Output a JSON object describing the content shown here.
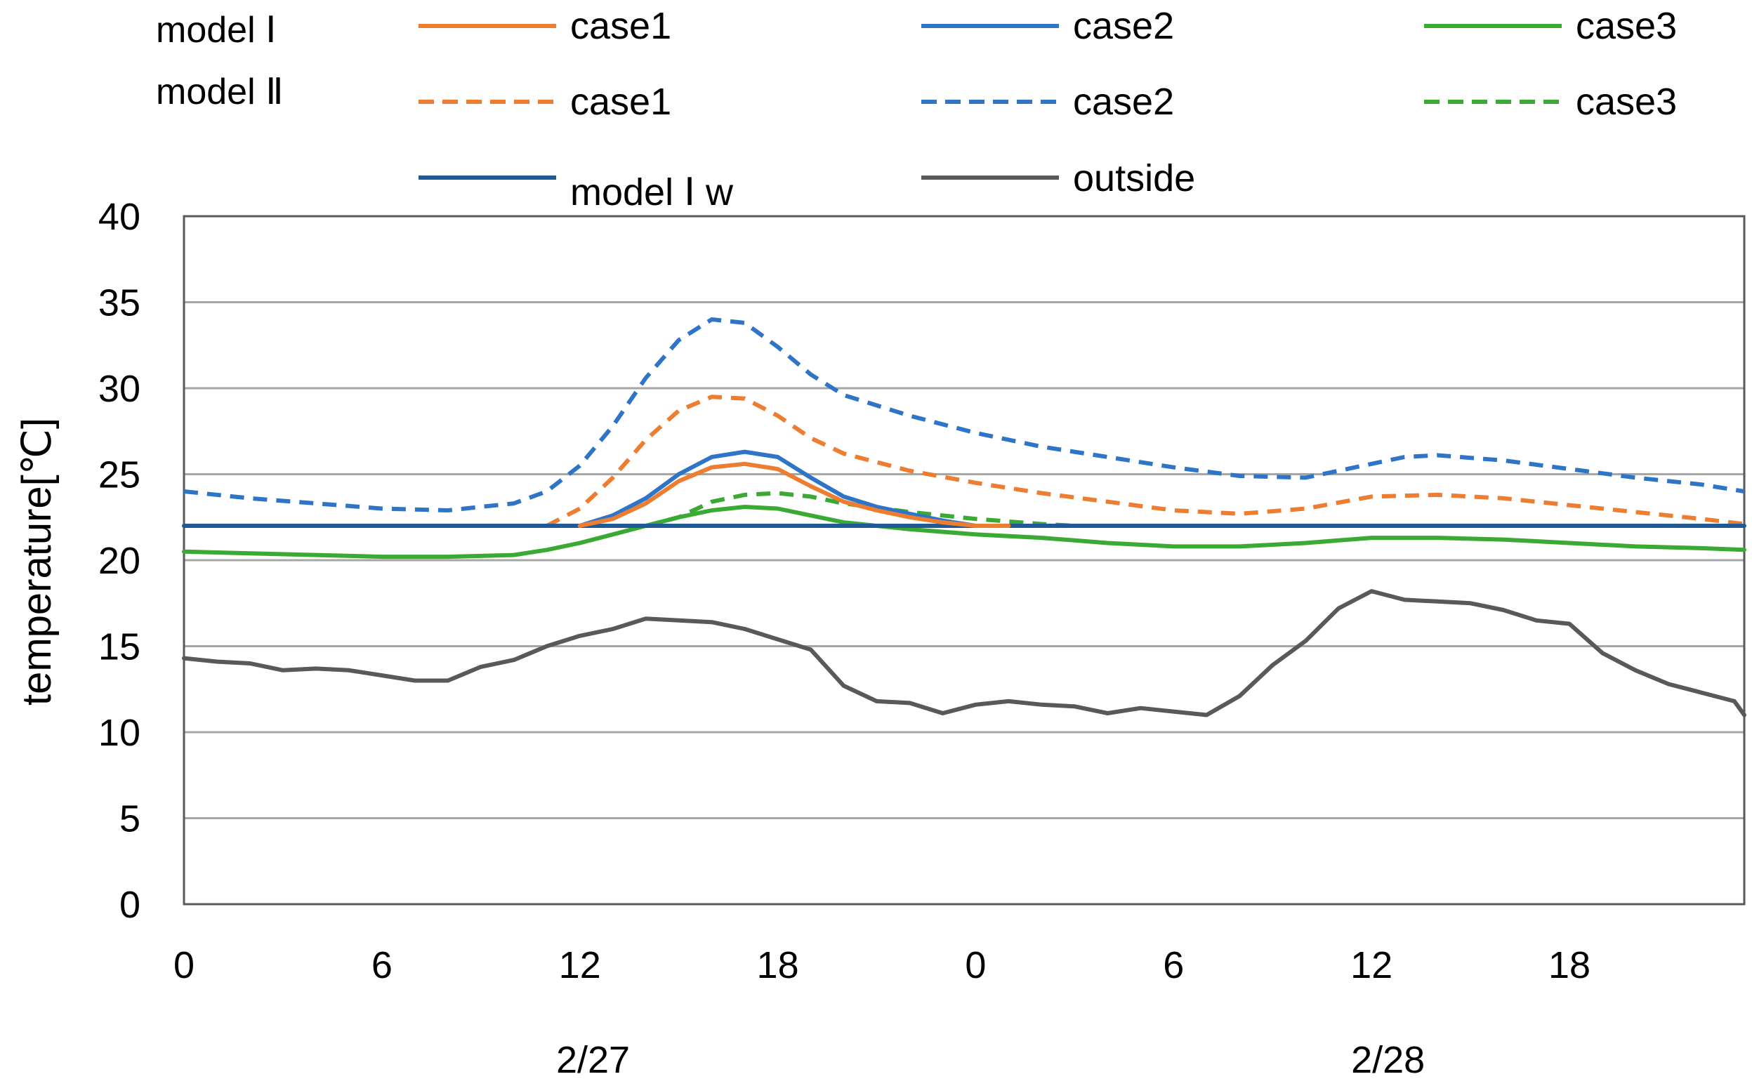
{
  "chart_data": {
    "type": "line",
    "title": "",
    "ylabel": "temperature[℃]",
    "xlabel": "",
    "ylim": [
      0,
      40
    ],
    "yticks": [
      "0",
      "5",
      "10",
      "15",
      "20",
      "25",
      "30",
      "35",
      "40"
    ],
    "xlim": [
      0,
      47.3
    ],
    "xtick_labels": [
      "0",
      "6",
      "12",
      "18",
      "0",
      "6",
      "12",
      "18"
    ],
    "date_labels": [
      "2/27",
      "2/28"
    ],
    "grid": true,
    "legend": {
      "position": "top",
      "row_labels": [
        "model Ⅰ",
        "model Ⅱ"
      ],
      "entries": [
        "case1",
        "case2",
        "case3",
        "case1",
        "case2",
        "case3",
        "model Ⅰ w",
        "outside"
      ]
    },
    "colors": {
      "case1": "#ED7D31",
      "case2": "#2E75C8",
      "case3": "#3AAA35",
      "model_w": "#1F5A96",
      "outside": "#595959",
      "grid": "#A6A6A6"
    },
    "series": [
      {
        "name": "model Ⅰ case1",
        "style": "solid",
        "color": "#ED7D31",
        "x": [
          12,
          13,
          14,
          15,
          16,
          17,
          18,
          19,
          20,
          21,
          22,
          23,
          24,
          25
        ],
        "y": [
          22.0,
          22.4,
          23.3,
          24.6,
          25.4,
          25.6,
          25.3,
          24.3,
          23.4,
          22.9,
          22.5,
          22.2,
          22.0,
          22.0
        ]
      },
      {
        "name": "model Ⅰ case2",
        "style": "solid",
        "color": "#2E75C8",
        "x": [
          12,
          13,
          14,
          15,
          16,
          17,
          18,
          19,
          20,
          21,
          22,
          23,
          24,
          25
        ],
        "y": [
          22.0,
          22.6,
          23.6,
          25.0,
          26.0,
          26.3,
          26.0,
          24.8,
          23.7,
          23.1,
          22.7,
          22.3,
          22.0,
          22.0
        ]
      },
      {
        "name": "model Ⅰ case3",
        "style": "solid",
        "color": "#3AAA35",
        "x": [
          0,
          2,
          4,
          6,
          8,
          10,
          11,
          12,
          13,
          14,
          15,
          16,
          17,
          18,
          19,
          20,
          22,
          24,
          26,
          28,
          30,
          32,
          34,
          36,
          37,
          38,
          40,
          42,
          44,
          46,
          47.3
        ],
        "y": [
          20.5,
          20.4,
          20.3,
          20.2,
          20.2,
          20.3,
          20.6,
          21.0,
          21.5,
          22.0,
          22.5,
          22.9,
          23.1,
          23.0,
          22.6,
          22.2,
          21.8,
          21.5,
          21.3,
          21.0,
          20.8,
          20.8,
          21.0,
          21.3,
          21.3,
          21.3,
          21.2,
          21.0,
          20.8,
          20.7,
          20.6
        ]
      },
      {
        "name": "model Ⅱ case1",
        "style": "dashed",
        "color": "#ED7D31",
        "x": [
          11,
          12,
          13,
          14,
          15,
          16,
          17,
          18,
          19,
          20,
          22,
          24,
          26,
          28,
          30,
          32,
          34,
          36,
          38,
          40,
          42,
          44,
          46,
          47.3
        ],
        "y": [
          22.0,
          23.0,
          24.8,
          27.0,
          28.7,
          29.5,
          29.4,
          28.4,
          27.1,
          26.2,
          25.2,
          24.5,
          23.9,
          23.4,
          22.9,
          22.7,
          23.0,
          23.7,
          23.8,
          23.6,
          23.2,
          22.8,
          22.4,
          22.1
        ]
      },
      {
        "name": "model Ⅱ case2",
        "style": "dashed",
        "color": "#2E75C8",
        "x": [
          0,
          2,
          4,
          6,
          8,
          10,
          11,
          12,
          13,
          14,
          15,
          16,
          17,
          18,
          19,
          20,
          22,
          24,
          26,
          28,
          30,
          32,
          34,
          36,
          37,
          38,
          40,
          42,
          44,
          46,
          47.3
        ],
        "y": [
          24.0,
          23.6,
          23.3,
          23.0,
          22.9,
          23.3,
          24.0,
          25.5,
          27.8,
          30.6,
          32.8,
          34.0,
          33.8,
          32.4,
          30.8,
          29.6,
          28.4,
          27.4,
          26.6,
          26.0,
          25.4,
          24.9,
          24.8,
          25.6,
          26.0,
          26.1,
          25.8,
          25.3,
          24.8,
          24.4,
          24.0
        ]
      },
      {
        "name": "model Ⅱ case3",
        "style": "dashed",
        "color": "#3AAA35",
        "x": [
          14,
          15,
          16,
          17,
          18,
          19,
          20,
          22,
          24,
          26,
          27
        ],
        "y": [
          22.0,
          22.5,
          23.4,
          23.8,
          23.9,
          23.7,
          23.3,
          22.8,
          22.4,
          22.1,
          22.0
        ]
      },
      {
        "name": "model Ⅰ w",
        "style": "solid",
        "color": "#1F5A96",
        "x": [
          0,
          47.3
        ],
        "y": [
          22.0,
          22.0
        ]
      },
      {
        "name": "outside",
        "style": "solid",
        "color": "#595959",
        "x": [
          0,
          1,
          2,
          3,
          4,
          5,
          6,
          7,
          8,
          9,
          10,
          11,
          12,
          13,
          14,
          15,
          16,
          17,
          18,
          19,
          20,
          21,
          22,
          23,
          24,
          25,
          26,
          27,
          28,
          29,
          30,
          31,
          32,
          33,
          34,
          35,
          36,
          37,
          38,
          39,
          40,
          41,
          42,
          43,
          44,
          45,
          46,
          47,
          47.3
        ],
        "y": [
          14.3,
          14.1,
          14.0,
          13.6,
          13.7,
          13.6,
          13.3,
          13.0,
          13.0,
          13.8,
          14.2,
          15.0,
          15.6,
          16.0,
          16.6,
          16.5,
          16.4,
          16.0,
          15.4,
          14.8,
          12.7,
          11.8,
          11.7,
          11.1,
          11.6,
          11.8,
          11.6,
          11.5,
          11.1,
          11.4,
          11.2,
          11.0,
          12.1,
          13.9,
          15.3,
          17.2,
          18.2,
          17.7,
          17.6,
          17.5,
          17.1,
          16.5,
          16.3,
          14.6,
          13.6,
          12.8,
          12.3,
          11.8,
          11.0
        ]
      }
    ]
  }
}
